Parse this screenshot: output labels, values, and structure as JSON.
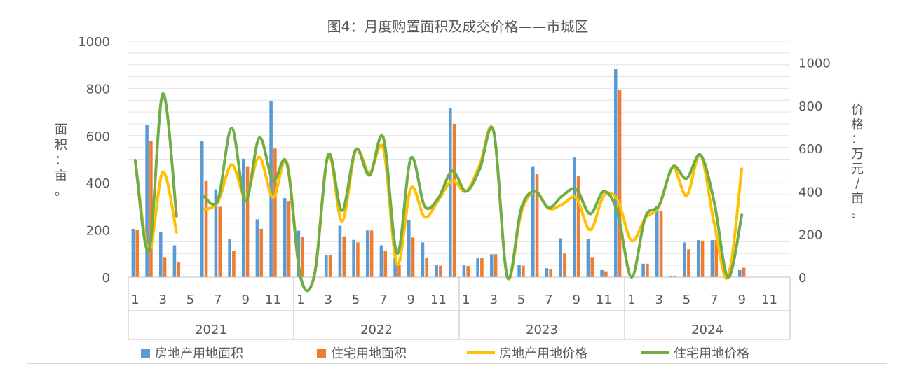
{
  "chart_data": {
    "type": "bar",
    "title": "图4：月度购置面积及成交价格——市城区",
    "ylabel": "面积：亩。",
    "y2label": "价格：万元/亩。",
    "ylim": [
      0,
      1000
    ],
    "y2lim": [
      0,
      1100
    ],
    "yticks": [
      "0",
      "200",
      "400",
      "600",
      "800",
      "1000"
    ],
    "y2ticks": [
      "0",
      "200",
      "400",
      "600",
      "800",
      "1000"
    ],
    "grid": true,
    "legend_position": "bottom",
    "x_month_labels": [
      "1",
      "",
      "3",
      "",
      "5",
      "",
      "7",
      "",
      "9",
      "",
      "11",
      ""
    ],
    "years": [
      "2021",
      "2022",
      "2023",
      "2024"
    ],
    "series": [
      {
        "name": "房地产用地面积",
        "type": "bar",
        "axis": "left",
        "color": "#5b9bd5",
        "values": [
          205,
          645,
          190,
          135,
          0,
          578,
          372,
          160,
          502,
          245,
          748,
          335,
          197,
          0,
          93,
          218,
          158,
          198,
          135,
          85,
          243,
          147,
          52,
          718,
          50,
          80,
          97,
          0,
          53,
          470,
          38,
          165,
          507,
          163,
          30,
          882,
          0,
          57,
          300,
          5,
          147,
          157,
          157,
          0,
          30,
          0,
          0,
          0
        ]
      },
      {
        "name": "住宅用地面积",
        "type": "bar",
        "axis": "left",
        "color": "#ed7d31",
        "values": [
          200,
          578,
          85,
          62,
          0,
          410,
          298,
          110,
          470,
          205,
          545,
          323,
          172,
          0,
          92,
          173,
          147,
          198,
          112,
          52,
          168,
          82,
          48,
          650,
          47,
          80,
          97,
          0,
          48,
          437,
          33,
          100,
          427,
          85,
          25,
          795,
          0,
          57,
          280,
          3,
          118,
          155,
          157,
          38,
          40,
          0,
          0,
          0
        ]
      },
      {
        "name": "房地产用地价格",
        "type": "line",
        "axis": "right",
        "color": "#ffc000",
        "values": [
          545,
          125,
          490,
          210,
          null,
          315,
          350,
          525,
          375,
          560,
          370,
          535,
          0,
          10,
          570,
          260,
          590,
          485,
          600,
          60,
          415,
          280,
          360,
          450,
          400,
          525,
          680,
          0,
          300,
          400,
          320,
          340,
          370,
          220,
          380,
          360,
          170,
          275,
          330,
          510,
          380,
          570,
          250,
          0,
          505,
          null,
          null,
          null
        ]
      },
      {
        "name": "住宅用地价格",
        "type": "line",
        "axis": "right",
        "color": "#70ad47",
        "values": [
          545,
          125,
          855,
          285,
          null,
          375,
          360,
          695,
          355,
          650,
          450,
          530,
          0,
          10,
          570,
          310,
          595,
          475,
          650,
          110,
          555,
          330,
          370,
          495,
          400,
          505,
          680,
          0,
          320,
          400,
          325,
          380,
          410,
          295,
          400,
          300,
          0,
          280,
          335,
          515,
          460,
          570,
          350,
          0,
          290,
          null,
          null,
          null
        ]
      }
    ]
  }
}
